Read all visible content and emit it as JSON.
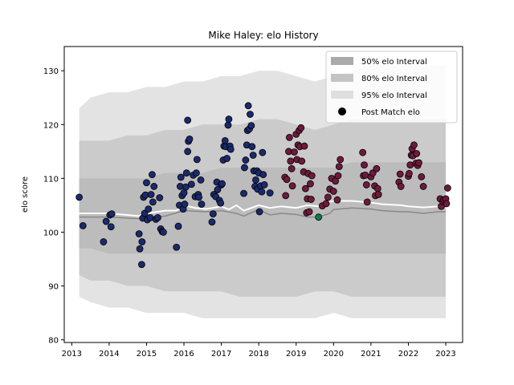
{
  "chart_data": {
    "type": "scatter",
    "title": "Mike Haley: elo History",
    "xlabel": "",
    "ylabel": "elo score",
    "xlim": [
      2012.8,
      2023.45
    ],
    "ylim": [
      79.5,
      134.5
    ],
    "x_ticks": [
      "2013",
      "2014",
      "2015",
      "2016",
      "2017",
      "2018",
      "2019",
      "2020",
      "2021",
      "2022",
      "2023"
    ],
    "y_ticks": [
      "80",
      "90",
      "100",
      "110",
      "120",
      "130"
    ],
    "grid": false,
    "legend_position": "top-right",
    "legend": [
      {
        "label": "50% elo Interval",
        "kind": "patch",
        "color": "#aaaaaa"
      },
      {
        "label": "80% elo Interval",
        "kind": "patch",
        "color": "#c4c4c4"
      },
      {
        "label": "95% elo Interval",
        "kind": "patch",
        "color": "#dedede"
      },
      {
        "label": "Post Match elo",
        "kind": "marker",
        "color": "#000000"
      }
    ],
    "colors": {
      "band95": "#e3e3e3",
      "band80": "#cbcbcb",
      "band50": "#bcbcbc",
      "mean_line": "#ffffff",
      "median_line": "#888888",
      "point_blue": "#1a2a6c",
      "point_red": "#6e1a3c",
      "point_green": "#0e7a4a"
    },
    "interval_x": [
      2013.2,
      2013.5,
      2014.0,
      2014.5,
      2015.0,
      2015.5,
      2016.0,
      2016.5,
      2017.0,
      2017.5,
      2018.0,
      2018.5,
      2019.0,
      2019.5,
      2020.0,
      2020.5,
      2021.0,
      2021.5,
      2022.0,
      2022.5,
      2023.0
    ],
    "band95_upper": [
      123,
      125,
      126,
      126,
      127,
      127,
      128,
      128,
      129,
      129,
      130,
      130,
      129,
      128,
      129,
      130,
      131,
      131,
      131,
      131,
      131
    ],
    "band95_lower": [
      88,
      87,
      86,
      86,
      85,
      85,
      85,
      84,
      84,
      84,
      84,
      84,
      84,
      84,
      85,
      84,
      84,
      84,
      84,
      84,
      84
    ],
    "band80_upper": [
      117,
      117,
      117,
      118,
      118,
      119,
      119,
      120,
      120,
      120,
      121,
      121,
      120,
      119,
      120,
      121,
      121,
      121,
      121,
      121,
      121
    ],
    "band80_lower": [
      92,
      91,
      91,
      90,
      90,
      89,
      89,
      89,
      89,
      88,
      88,
      88,
      88,
      89,
      89,
      88,
      88,
      88,
      88,
      88,
      88
    ],
    "band50_upper": [
      110,
      110,
      110,
      110,
      110,
      111,
      111,
      111,
      112,
      112,
      112,
      112,
      112,
      112,
      112,
      113,
      113,
      113,
      113,
      113,
      113
    ],
    "band50_lower": [
      97,
      97,
      96,
      96,
      96,
      96,
      96,
      96,
      96,
      96,
      96,
      96,
      96,
      96,
      96,
      96,
      96,
      96,
      96,
      96,
      96
    ],
    "mean_line": {
      "x": [
        2013.2,
        2014.0,
        2014.8,
        2015.0,
        2015.5,
        2015.8,
        2016.0,
        2016.3,
        2016.6,
        2017.0,
        2017.2,
        2017.4,
        2017.6,
        2018.0,
        2018.3,
        2018.6,
        2019.0,
        2019.3,
        2019.6,
        2019.8,
        2020.0,
        2020.5,
        2021.0,
        2021.3,
        2021.8,
        2022.0,
        2022.4,
        2022.8,
        2023.0
      ],
      "y": [
        103.5,
        103.5,
        103.0,
        103.5,
        104.0,
        104.0,
        105.0,
        104.5,
        104.3,
        104.8,
        104.2,
        105.0,
        104.0,
        105.0,
        104.5,
        104.8,
        104.5,
        105.0,
        104.8,
        105.5,
        105.8,
        105.8,
        105.5,
        105.2,
        105.0,
        104.8,
        104.6,
        104.8,
        104.8
      ]
    },
    "median_line": {
      "x": [
        2013.2,
        2014.0,
        2014.8,
        2015.5,
        2016.0,
        2016.6,
        2017.0,
        2017.4,
        2017.6,
        2018.0,
        2018.3,
        2018.6,
        2019.0,
        2019.3,
        2019.6,
        2019.9,
        2020.0,
        2020.5,
        2021.0,
        2021.3,
        2021.8,
        2022.0,
        2022.4,
        2022.8,
        2023.0
      ],
      "y": [
        102.8,
        102.8,
        102.5,
        103.0,
        104.0,
        103.8,
        104.0,
        103.5,
        103.0,
        104.2,
        103.2,
        103.5,
        103.3,
        102.8,
        102.8,
        103.5,
        104.2,
        104.5,
        104.3,
        104.0,
        103.8,
        103.8,
        103.5,
        103.8,
        103.8
      ]
    },
    "points_blue": [
      [
        2013.2,
        106.5
      ],
      [
        2013.3,
        101.2
      ],
      [
        2013.85,
        98.2
      ],
      [
        2013.92,
        102.0
      ],
      [
        2014.02,
        103.2
      ],
      [
        2014.05,
        101.0
      ],
      [
        2014.07,
        103.4
      ],
      [
        2014.8,
        99.7
      ],
      [
        2014.82,
        96.9
      ],
      [
        2014.87,
        94.0
      ],
      [
        2014.88,
        98.2
      ],
      [
        2014.9,
        102.6
      ],
      [
        2014.92,
        106.5
      ],
      [
        2014.95,
        103.5
      ],
      [
        2014.97,
        106.9
      ],
      [
        2015.0,
        109.2
      ],
      [
        2015.02,
        102.3
      ],
      [
        2015.05,
        104.3
      ],
      [
        2015.1,
        102.7
      ],
      [
        2015.12,
        107.0
      ],
      [
        2015.15,
        110.7
      ],
      [
        2015.17,
        105.6
      ],
      [
        2015.2,
        108.5
      ],
      [
        2015.25,
        102.4
      ],
      [
        2015.3,
        102.7
      ],
      [
        2015.35,
        106.4
      ],
      [
        2015.38,
        100.6
      ],
      [
        2015.42,
        100.1
      ],
      [
        2015.45,
        100.0
      ],
      [
        2015.8,
        97.2
      ],
      [
        2015.85,
        101.1
      ],
      [
        2015.88,
        105.0
      ],
      [
        2015.9,
        108.5
      ],
      [
        2015.92,
        110.2
      ],
      [
        2015.95,
        106.8
      ],
      [
        2015.98,
        104.3
      ],
      [
        2016.0,
        107.3
      ],
      [
        2016.02,
        105.2
      ],
      [
        2016.05,
        108.4
      ],
      [
        2016.07,
        111.0
      ],
      [
        2016.1,
        115.0
      ],
      [
        2016.12,
        116.9
      ],
      [
        2016.15,
        117.3
      ],
      [
        2016.1,
        120.8
      ],
      [
        2016.2,
        108.9
      ],
      [
        2016.25,
        110.6
      ],
      [
        2016.3,
        106.6
      ],
      [
        2016.33,
        111.0
      ],
      [
        2016.35,
        113.5
      ],
      [
        2016.38,
        107.0
      ],
      [
        2016.4,
        106.5
      ],
      [
        2016.45,
        109.7
      ],
      [
        2016.47,
        105.2
      ],
      [
        2016.75,
        101.9
      ],
      [
        2016.78,
        103.4
      ],
      [
        2016.8,
        107.0
      ],
      [
        2016.85,
        106.6
      ],
      [
        2016.88,
        109.3
      ],
      [
        2016.9,
        107.9
      ],
      [
        2016.95,
        105.9
      ],
      [
        2016.98,
        105.4
      ],
      [
        2017.0,
        108.8
      ],
      [
        2017.02,
        109.0
      ],
      [
        2017.05,
        113.4
      ],
      [
        2017.07,
        116.0
      ],
      [
        2017.1,
        117.0
      ],
      [
        2017.12,
        115.9
      ],
      [
        2017.15,
        113.7
      ],
      [
        2017.18,
        119.9
      ],
      [
        2017.2,
        121.0
      ],
      [
        2017.23,
        116.0
      ],
      [
        2017.25,
        115.4
      ],
      [
        2017.6,
        107.2
      ],
      [
        2017.62,
        112.0
      ],
      [
        2017.65,
        113.4
      ],
      [
        2017.68,
        116.2
      ],
      [
        2017.7,
        118.9
      ],
      [
        2017.72,
        123.5
      ],
      [
        2017.75,
        119.2
      ],
      [
        2017.77,
        121.9
      ],
      [
        2017.8,
        119.8
      ],
      [
        2017.82,
        115.9
      ],
      [
        2017.85,
        114.3
      ],
      [
        2017.87,
        111.4
      ],
      [
        2017.9,
        108.5
      ],
      [
        2017.92,
        109.7
      ],
      [
        2017.95,
        111.4
      ],
      [
        2017.97,
        108.0
      ],
      [
        2018.0,
        111.0
      ],
      [
        2018.02,
        103.8
      ],
      [
        2018.05,
        108.6
      ],
      [
        2018.08,
        107.5
      ],
      [
        2018.1,
        114.8
      ],
      [
        2018.12,
        110.7
      ],
      [
        2018.15,
        108.8
      ],
      [
        2018.3,
        107.3
      ]
    ],
    "points_red": [
      [
        2018.7,
        110.2
      ],
      [
        2018.72,
        106.8
      ],
      [
        2018.75,
        109.8
      ],
      [
        2018.8,
        115.0
      ],
      [
        2018.82,
        117.6
      ],
      [
        2018.85,
        113.2
      ],
      [
        2018.88,
        111.8
      ],
      [
        2018.9,
        108.6
      ],
      [
        2018.95,
        114.9
      ],
      [
        2019.0,
        118.2
      ],
      [
        2019.02,
        113.5
      ],
      [
        2019.05,
        116.2
      ],
      [
        2019.08,
        118.9
      ],
      [
        2019.1,
        115.9
      ],
      [
        2019.13,
        119.4
      ],
      [
        2019.15,
        113.2
      ],
      [
        2019.2,
        111.2
      ],
      [
        2019.22,
        116.0
      ],
      [
        2019.25,
        108.1
      ],
      [
        2019.28,
        103.6
      ],
      [
        2019.3,
        106.2
      ],
      [
        2019.32,
        110.9
      ],
      [
        2019.35,
        103.8
      ],
      [
        2019.38,
        109.0
      ],
      [
        2019.4,
        106.1
      ],
      [
        2019.42,
        110.5
      ],
      [
        2019.7,
        104.9
      ],
      [
        2019.8,
        105.3
      ],
      [
        2019.85,
        106.5
      ],
      [
        2019.9,
        108.0
      ],
      [
        2019.95,
        110.0
      ],
      [
        2020.0,
        107.6
      ],
      [
        2020.05,
        109.5
      ],
      [
        2020.1,
        106.0
      ],
      [
        2020.12,
        110.5
      ],
      [
        2020.15,
        112.2
      ],
      [
        2020.18,
        113.5
      ],
      [
        2020.78,
        114.8
      ],
      [
        2020.8,
        110.5
      ],
      [
        2020.82,
        112.5
      ],
      [
        2020.85,
        110.6
      ],
      [
        2020.88,
        108.8
      ],
      [
        2020.9,
        105.6
      ],
      [
        2021.0,
        110.3
      ],
      [
        2021.05,
        111.0
      ],
      [
        2021.1,
        108.6
      ],
      [
        2021.12,
        106.8
      ],
      [
        2021.15,
        111.8
      ],
      [
        2021.18,
        108.1
      ],
      [
        2021.2,
        107.0
      ],
      [
        2021.75,
        109.3
      ],
      [
        2021.78,
        110.8
      ],
      [
        2021.8,
        108.5
      ],
      [
        2022.0,
        110.4
      ],
      [
        2022.02,
        110.9
      ],
      [
        2022.05,
        112.5
      ],
      [
        2022.08,
        114.3
      ],
      [
        2022.1,
        115.5
      ],
      [
        2022.12,
        114.2
      ],
      [
        2022.15,
        116.2
      ],
      [
        2022.2,
        112.8
      ],
      [
        2022.22,
        114.6
      ],
      [
        2022.25,
        112.4
      ],
      [
        2022.28,
        112.9
      ],
      [
        2022.35,
        110.3
      ],
      [
        2022.4,
        108.5
      ],
      [
        2022.85,
        106.2
      ],
      [
        2022.88,
        104.8
      ],
      [
        2022.92,
        105.7
      ],
      [
        2022.95,
        106.0
      ],
      [
        2023.0,
        106.2
      ],
      [
        2023.02,
        105.3
      ],
      [
        2023.05,
        108.2
      ]
    ],
    "points_green": [
      [
        2019.6,
        102.8
      ]
    ]
  }
}
